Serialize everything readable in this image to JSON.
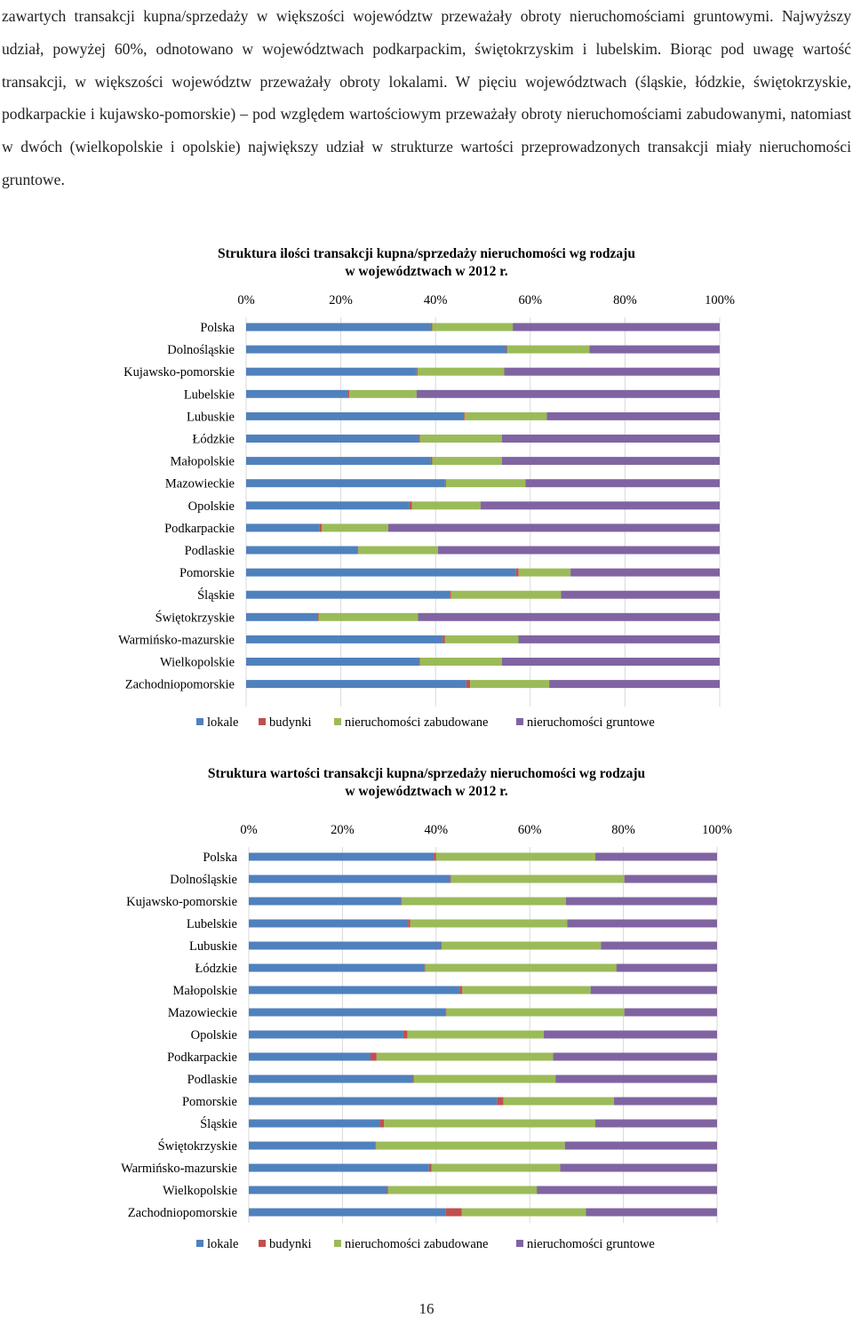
{
  "document": {
    "paragraph": "zawartych transakcji kupna/sprzedaży w większości województw przeważały obroty nieruchomościami gruntowymi. Najwyższy udział, powyżej 60%, odnotowano w województwach podkarpackim, świętokrzyskim i lubelskim. Biorąc pod uwagę wartość transakcji, w większości województw przeważały obroty lokalami. W pięciu województwach (śląskie, łódzkie, świętokrzyskie, podkarpackie i kujawsko-pomorskie) – pod względem wartościowym przeważały obroty nieruchomościami zabudowanymi, natomiast w dwóch (wielkopolskie i opolskie) największy udział w strukturze wartości przeprowadzonych transakcji miały nieruchomości gruntowe.",
    "page_number": "16"
  },
  "colors": {
    "lokale": "#4f81bd",
    "budynki": "#c0504d",
    "zabudowane": "#9bbb59",
    "gruntowe": "#8064a2",
    "gridline": "#d9d9d9"
  },
  "chart_data": [
    {
      "type": "bar",
      "orientation": "horizontal",
      "stacked": "percent",
      "title_line1": "Struktura ilości transakcji kupna/sprzedaży nieruchomości wg rodzaju",
      "title_line2": "w województwach w 2012 r.",
      "xlim": [
        0,
        100
      ],
      "x_ticks": [
        "0%",
        "20%",
        "40%",
        "60%",
        "80%",
        "100%"
      ],
      "legend_position": "bottom",
      "categories": [
        "Polska",
        "Dolnośląskie",
        "Kujawsko-pomorskie",
        "Lubelskie",
        "Lubuskie",
        "Łódzkie",
        "Małopolskie",
        "Mazowieckie",
        "Opolskie",
        "Podkarpackie",
        "Podlaskie",
        "Pomorskie",
        "Śląskie",
        "Świętokrzyskie",
        "Warmińsko-mazurskie",
        "Wielkopolskie",
        "Zachodniopomorskie"
      ],
      "series": [
        {
          "name": "lokale",
          "color_key": "lokale",
          "values": [
            39,
            55,
            36,
            21.5,
            46,
            36.5,
            39,
            42,
            34.5,
            15.5,
            23.5,
            57,
            43,
            15,
            41.5,
            36.5,
            46.5
          ]
        },
        {
          "name": "budynki",
          "color_key": "budynki",
          "values": [
            0.3,
            0.2,
            0.2,
            0.3,
            0.2,
            0.2,
            0.3,
            0.2,
            0.5,
            0.5,
            0.2,
            0.5,
            0.3,
            0.3,
            0.5,
            0.2,
            0.8
          ]
        },
        {
          "name": "nieruchomości zabudowane",
          "color_key": "zabudowane",
          "values": [
            17,
            17.3,
            18.3,
            14.2,
            17.3,
            17.3,
            14.7,
            16.8,
            14.5,
            14,
            16.8,
            11,
            23.2,
            21,
            15.5,
            17.3,
            16.7
          ]
        },
        {
          "name": "nieruchomości gruntowe",
          "color_key": "gruntowe",
          "values": [
            43.7,
            27.5,
            45.5,
            64,
            36.5,
            46,
            46,
            41,
            50.5,
            70,
            59.5,
            31.5,
            33.5,
            63.7,
            42.5,
            46,
            36
          ]
        }
      ]
    },
    {
      "type": "bar",
      "orientation": "horizontal",
      "stacked": "percent",
      "title_line1": "Struktura wartości transakcji kupna/sprzedaży nieruchomości wg rodzaju",
      "title_line2": "w województwach w 2012 r.",
      "xlim": [
        0,
        100
      ],
      "x_ticks": [
        "0%",
        "20%",
        "40%",
        "60%",
        "80%",
        "100%"
      ],
      "legend_position": "bottom",
      "categories": [
        "Polska",
        "Dolnośląskie",
        "Kujawsko-pomorskie",
        "Lubelskie",
        "Lubuskie",
        "Łódzkie",
        "Małopolskie",
        "Mazowieckie",
        "Opolskie",
        "Podkarpackie",
        "Podlaskie",
        "Pomorskie",
        "Śląskie",
        "Świętokrzyskie",
        "Warmińsko-mazurskie",
        "Wielkopolskie",
        "Zachodniopomorskie"
      ],
      "series": [
        {
          "name": "lokale",
          "color_key": "lokale",
          "values": [
            39.5,
            43,
            32.5,
            34,
            41,
            37.5,
            45,
            42,
            33,
            26,
            35,
            53,
            28,
            27,
            38.5,
            29.5,
            42
          ]
        },
        {
          "name": "budynki",
          "color_key": "budynki",
          "values": [
            0.5,
            0.2,
            0.2,
            0.5,
            0.2,
            0.2,
            0.6,
            0.2,
            0.9,
            1.3,
            0.2,
            1.4,
            0.9,
            0.2,
            0.5,
            0.2,
            3.5
          ]
        },
        {
          "name": "nieruchomości zabudowane",
          "color_key": "zabudowane",
          "values": [
            34,
            37,
            35,
            33.5,
            34,
            40.8,
            27.4,
            38,
            29.1,
            37.7,
            30.3,
            23.6,
            45.1,
            40.3,
            27.5,
            31.8,
            26.5
          ]
        },
        {
          "name": "nieruchomości gruntowe",
          "color_key": "gruntowe",
          "values": [
            26,
            19.8,
            32.3,
            32,
            24.8,
            21.5,
            27,
            19.8,
            37,
            35,
            34.5,
            22,
            26,
            32.5,
            33.5,
            38.5,
            28
          ]
        }
      ]
    }
  ]
}
